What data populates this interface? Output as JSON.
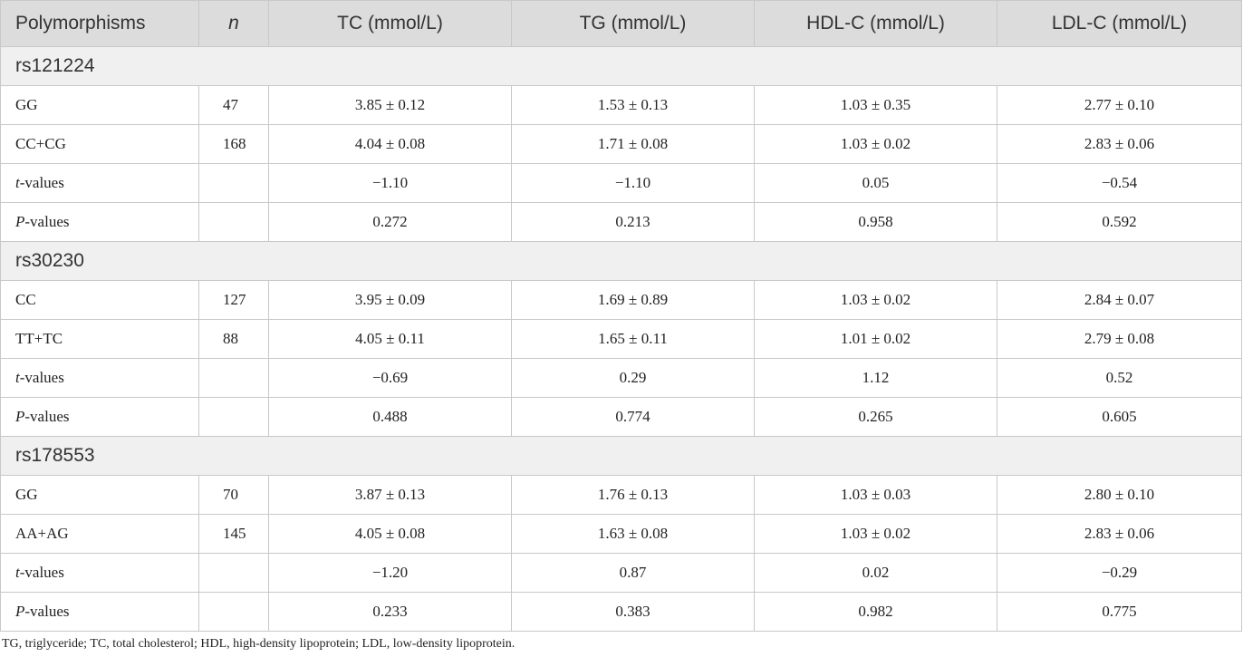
{
  "header": {
    "col_polymorphisms": "Polymorphisms",
    "col_n": "n",
    "col_tc": "TC (mmol/L)",
    "col_tg": "TG (mmol/L)",
    "col_hdl": "HDL-C (mmol/L)",
    "col_ldl": "LDL-C (mmol/L)"
  },
  "groups": [
    {
      "name": "rs121224",
      "rows": [
        {
          "label": "GG",
          "n": "47",
          "tc": "3.85 ± 0.12",
          "tg": "1.53 ± 0.13",
          "hdl": "1.03 ± 0.35",
          "ldl": "2.77 ± 0.10"
        },
        {
          "label": "CC+CG",
          "n": "168",
          "tc": "4.04 ± 0.08",
          "tg": "1.71 ± 0.08",
          "hdl": "1.03 ± 0.02",
          "ldl": "2.83 ± 0.06"
        },
        {
          "label_italic": "t",
          "label_rest": "-values",
          "n": "",
          "tc": "−1.10",
          "tg": "−1.10",
          "hdl": "0.05",
          "ldl": "−0.54"
        },
        {
          "label_italic": "P",
          "label_rest": "-values",
          "n": "",
          "tc": "0.272",
          "tg": "0.213",
          "hdl": "0.958",
          "ldl": "0.592"
        }
      ]
    },
    {
      "name": "rs30230",
      "rows": [
        {
          "label": "CC",
          "n": "127",
          "tc": "3.95 ± 0.09",
          "tg": "1.69 ± 0.89",
          "hdl": "1.03 ± 0.02",
          "ldl": "2.84 ± 0.07"
        },
        {
          "label": "TT+TC",
          "n": "88",
          "tc": "4.05 ± 0.11",
          "tg": "1.65 ± 0.11",
          "hdl": "1.01 ± 0.02",
          "ldl": "2.79 ± 0.08"
        },
        {
          "label_italic": "t",
          "label_rest": "-values",
          "n": "",
          "tc": "−0.69",
          "tg": "0.29",
          "hdl": "1.12",
          "ldl": "0.52"
        },
        {
          "label_italic": "P",
          "label_rest": "-values",
          "n": "",
          "tc": "0.488",
          "tg": "0.774",
          "hdl": "0.265",
          "ldl": "0.605"
        }
      ]
    },
    {
      "name": "rs178553",
      "rows": [
        {
          "label": "GG",
          "n": "70",
          "tc": "3.87 ± 0.13",
          "tg": "1.76 ± 0.13",
          "hdl": "1.03 ± 0.03",
          "ldl": "2.80 ± 0.10"
        },
        {
          "label": "AA+AG",
          "n": "145",
          "tc": "4.05 ± 0.08",
          "tg": "1.63 ± 0.08",
          "hdl": "1.03 ± 0.02",
          "ldl": "2.83 ± 0.06"
        },
        {
          "label_italic": "t",
          "label_rest": "-values",
          "n": "",
          "tc": "−1.20",
          "tg": "0.87",
          "hdl": "0.02",
          "ldl": "−0.29"
        },
        {
          "label_italic": "P",
          "label_rest": "-values",
          "n": "",
          "tc": "0.233",
          "tg": "0.383",
          "hdl": "0.982",
          "ldl": "0.775"
        }
      ]
    }
  ],
  "footnote": "TG, triglyceride; TC, total cholesterol; HDL, high-density lipoprotein; LDL, low-density lipoprotein."
}
